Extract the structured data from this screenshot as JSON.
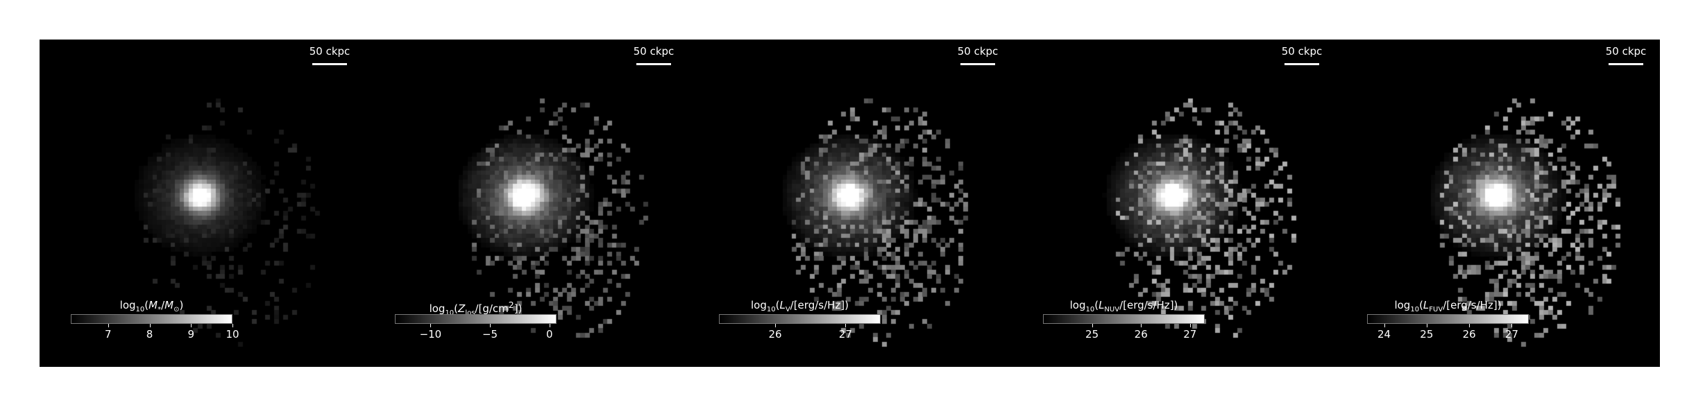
{
  "scalebar_label": "50 ckpc",
  "panels": [
    {
      "quantity": "stellar-mass",
      "label_html": "log<sub>10</sub>(<i>M</i><sub>*</sub>/<i>M</i><sub>⊙</sub>)",
      "cbar_range": [
        6.1,
        10.0
      ],
      "ticks": [
        7,
        8,
        9,
        10
      ],
      "tick_labels": [
        "7",
        "8",
        "9",
        "10"
      ],
      "image": {
        "core_brightness": 1.0,
        "halo_brightness": 0.32,
        "speckle_brightness": 0.18,
        "speckle_fraction": 0.18
      }
    },
    {
      "quantity": "metal-surface-density",
      "label_html": "log<sub>10</sub>(<i>Z</i><sub>los</sub>/[g/cm<sup>2</sup>])",
      "cbar_range": [
        -13.0,
        0.6
      ],
      "ticks": [
        -10,
        -5,
        0
      ],
      "tick_labels": [
        "−10",
        "−5",
        "0"
      ],
      "image": {
        "core_brightness": 1.0,
        "halo_brightness": 0.6,
        "speckle_brightness": 0.5,
        "speckle_fraction": 0.35
      }
    },
    {
      "quantity": "v-band-luminosity",
      "label_html": "log<sub>10</sub>(<i>L</i><sub>V</sub>/[erg/s/Hz])",
      "cbar_range": [
        25.2,
        27.5
      ],
      "ticks": [
        26,
        27
      ],
      "tick_labels": [
        "26",
        "27"
      ],
      "image": {
        "core_brightness": 0.95,
        "halo_brightness": 0.55,
        "speckle_brightness": 0.6,
        "speckle_fraction": 0.38
      }
    },
    {
      "quantity": "nuv-luminosity",
      "label_html": "log<sub>10</sub>(<i>L</i><sub>NUV</sub>/[erg/s/Hz])",
      "cbar_range": [
        24.0,
        27.3
      ],
      "ticks": [
        25,
        26,
        27
      ],
      "tick_labels": [
        "25",
        "26",
        "27"
      ],
      "image": {
        "core_brightness": 0.95,
        "halo_brightness": 0.6,
        "speckle_brightness": 0.7,
        "speckle_fraction": 0.4
      }
    },
    {
      "quantity": "fuv-luminosity",
      "label_html": "log<sub>10</sub>(<i>L</i><sub>FUV</sub>/[erg/s/Hz])",
      "cbar_range": [
        23.6,
        27.4
      ],
      "ticks": [
        24,
        25,
        26,
        27
      ],
      "tick_labels": [
        "24",
        "25",
        "26",
        "27"
      ],
      "image": {
        "core_brightness": 0.95,
        "halo_brightness": 0.6,
        "speckle_brightness": 0.72,
        "speckle_fraction": 0.4
      }
    }
  ]
}
